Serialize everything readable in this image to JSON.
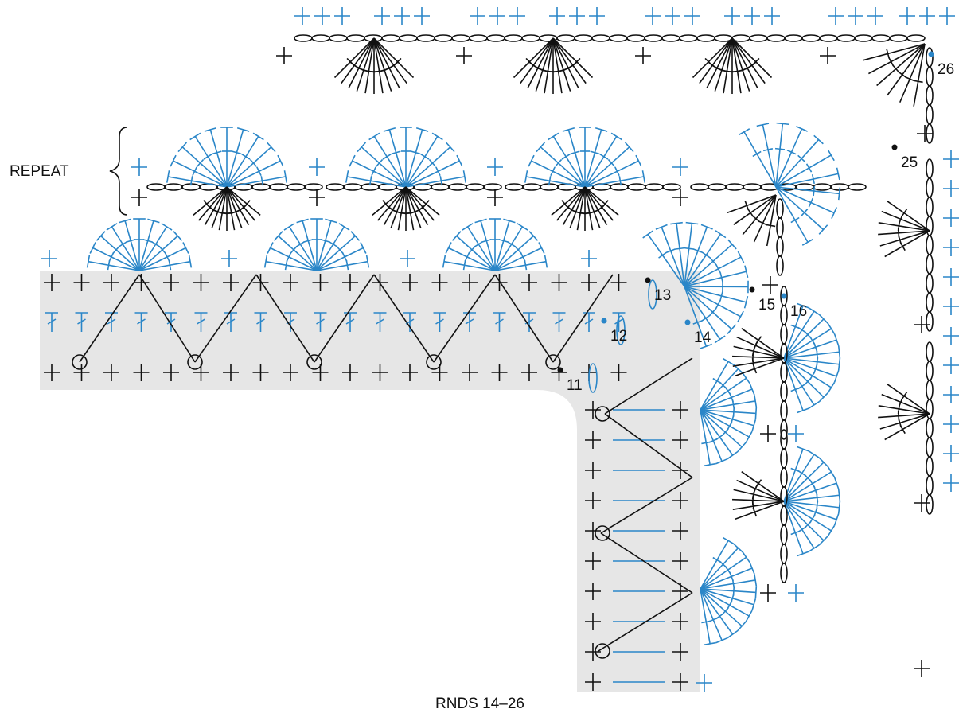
{
  "labels": {
    "repeat": "REPEAT",
    "caption": "RNDS 14–26"
  },
  "round_numbers": [
    "11",
    "12",
    "13",
    "14",
    "15",
    "16",
    "25",
    "26"
  ]
}
